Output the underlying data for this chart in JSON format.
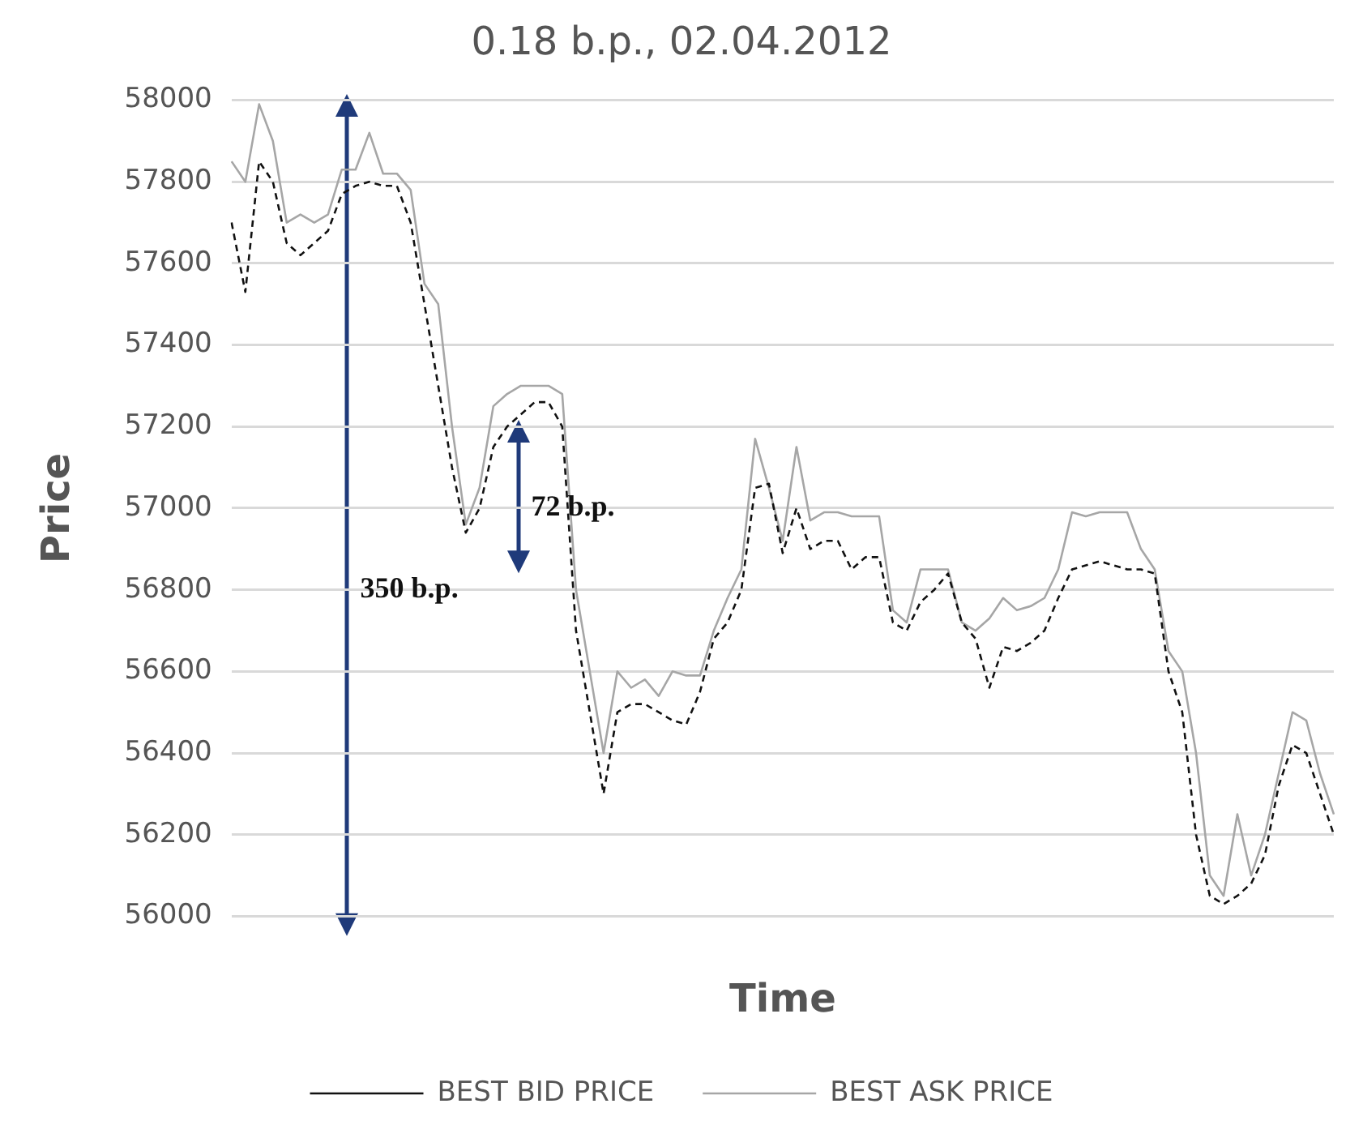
{
  "chart_data": {
    "type": "line",
    "title": "0.18 b.p., 02.04.2012",
    "xlabel": "Time",
    "ylabel": "Price",
    "categories": [
      null,
      null,
      null,
      null,
      null,
      null,
      null,
      null,
      null,
      null,
      null,
      null,
      null,
      null,
      null,
      null,
      null,
      null,
      null,
      null,
      null,
      null,
      null,
      null,
      null,
      null,
      null,
      null,
      null,
      null,
      null,
      null,
      null,
      null,
      null,
      null,
      null,
      null,
      null,
      null,
      null,
      null,
      null,
      null,
      null,
      null,
      null,
      null,
      null,
      null,
      null,
      null,
      null,
      null,
      null,
      null,
      null,
      null,
      null,
      null,
      null,
      null,
      null,
      null,
      null,
      null,
      null,
      null,
      null,
      null,
      null,
      null,
      null,
      null,
      null,
      null,
      null,
      null,
      null,
      null,
      null
    ],
    "series": [
      {
        "name": "BEST BID PRICE",
        "color": "#111111",
        "line_style": "dashed",
        "values": [
          57700,
          57530,
          57850,
          57800,
          57650,
          57620,
          57650,
          57680,
          57770,
          57790,
          57800,
          57790,
          57790,
          57700,
          57500,
          57300,
          57100,
          56940,
          57000,
          57150,
          57200,
          57230,
          57260,
          57260,
          57200,
          56700,
          56500,
          56300,
          56500,
          56520,
          56520,
          56500,
          56480,
          56470,
          56550,
          56680,
          56720,
          56800,
          57050,
          57060,
          56890,
          57000,
          56900,
          56920,
          56920,
          56850,
          56880,
          56880,
          56720,
          56700,
          56770,
          56800,
          56840,
          56720,
          56680,
          56560,
          56660,
          56650,
          56670,
          56700,
          56780,
          56850,
          56860,
          56870,
          56860,
          56850,
          56850,
          56840,
          56600,
          56500,
          56200,
          56050,
          56030,
          56050,
          56080,
          56150,
          56320,
          56420,
          56400,
          56300,
          56200
        ]
      },
      {
        "name": "BEST ASK PRICE",
        "color": "#a6a6a6",
        "line_style": "solid",
        "values": [
          57850,
          57800,
          57990,
          57900,
          57700,
          57720,
          57700,
          57720,
          57830,
          57830,
          57920,
          57820,
          57820,
          57780,
          57550,
          57500,
          57200,
          56960,
          57050,
          57250,
          57280,
          57300,
          57300,
          57300,
          57280,
          56800,
          56600,
          56400,
          56600,
          56560,
          56580,
          56540,
          56600,
          56590,
          56590,
          56700,
          56780,
          56850,
          57170,
          57050,
          56920,
          57150,
          56970,
          56990,
          56990,
          56980,
          56980,
          56980,
          56750,
          56720,
          56850,
          56850,
          56850,
          56720,
          56700,
          56730,
          56780,
          56750,
          56760,
          56780,
          56850,
          56990,
          56980,
          56990,
          56990,
          56990,
          56900,
          56850,
          56650,
          56600,
          56400,
          56100,
          56050,
          56250,
          56100,
          56200,
          56350,
          56500,
          56480,
          56350,
          56250
        ]
      }
    ],
    "ylim": [
      56000,
      58000
    ],
    "yticks": [
      56000,
      56200,
      56400,
      56600,
      56800,
      57000,
      57200,
      57400,
      57600,
      57800,
      58000
    ],
    "grid": "y",
    "legend": "bottom",
    "tick_labels": "y",
    "marker": "none",
    "annotations": [
      "350 b.p.",
      "72 b.p."
    ]
  }
}
